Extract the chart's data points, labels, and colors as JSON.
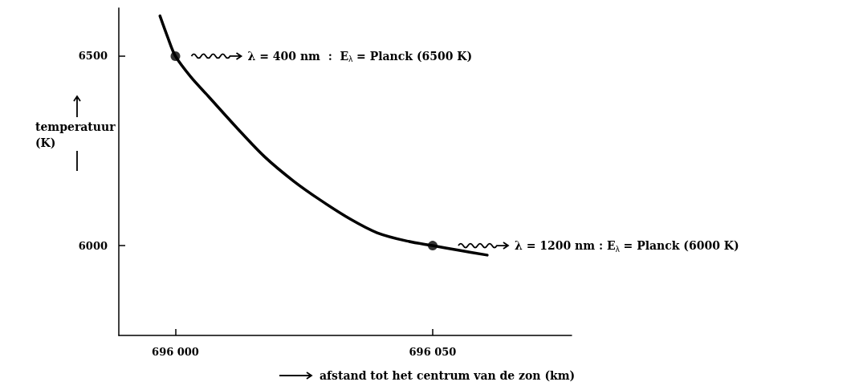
{
  "chart_data": {
    "type": "line",
    "xlabel": "afstand tot het centrum van de zon (km)",
    "ylabel": "temperatuur\n(K)",
    "xlim": [
      695989,
      696077
    ],
    "ylim": [
      5763,
      6627
    ],
    "xticks": [
      {
        "value": 696000,
        "label": "696 000"
      },
      {
        "value": 696050,
        "label": "696 050"
      }
    ],
    "yticks": [
      6000,
      6500
    ],
    "grid": false,
    "series": [
      {
        "type": "line",
        "color": "#000000",
        "marker": "none",
        "x": [
          695997,
          695998.5,
          696000,
          696003,
          696006.4,
          696012,
          696017.3,
          696023,
          696028.3,
          696034,
          696039.2,
          696045,
          696050,
          696055,
          696060.6
        ],
        "values": [
          6606,
          6550,
          6500,
          6445,
          6394,
          6310,
          6235,
          6170,
          6119,
          6070,
          6034,
          6012,
          6000,
          5988,
          5975
        ]
      },
      {
        "type": "scatter",
        "color": "#000000",
        "marker": "circle",
        "x": [
          696000,
          696050
        ],
        "values": [
          6500,
          6000
        ]
      }
    ],
    "annotations": [
      "λ = 400 nm  :  E$_{λ}$ = Planck (6500 K)",
      "λ = 1200 nm : E$_{λ}$ = Planck (6000 K)"
    ]
  }
}
